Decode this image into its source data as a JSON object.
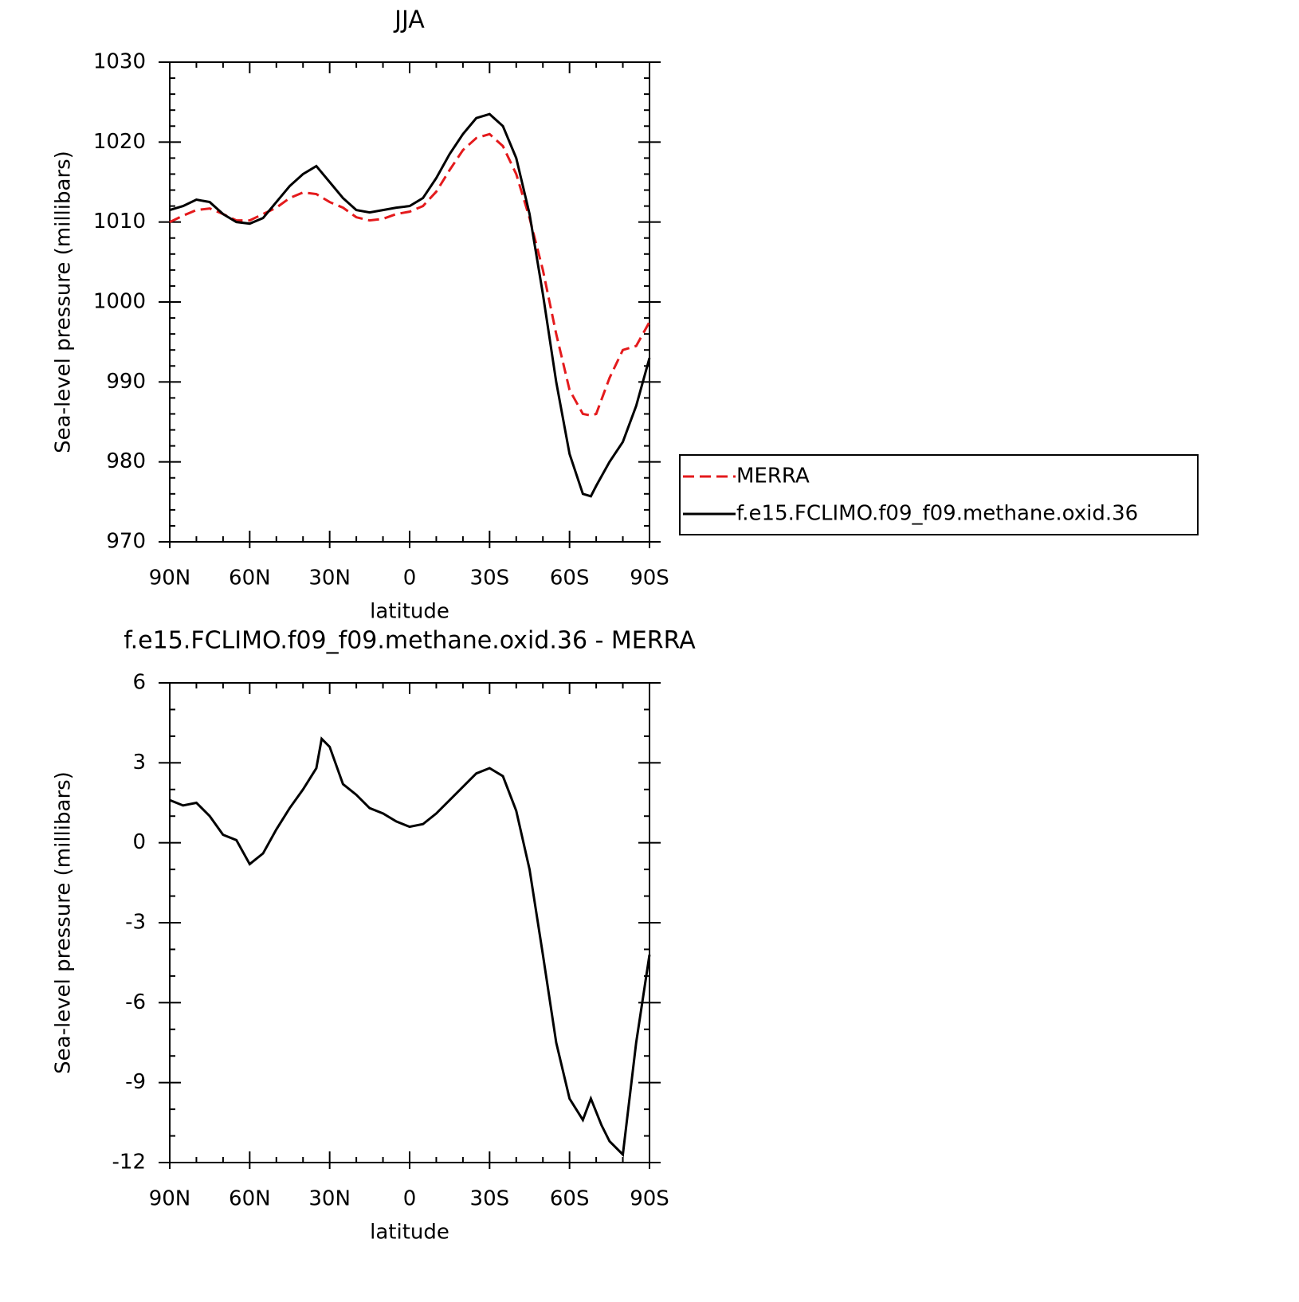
{
  "chart_data": [
    {
      "type": "line",
      "title": "JJA",
      "xlabel": "latitude",
      "ylabel": "Sea-level pressure (millibars)",
      "x": [
        90,
        85,
        80,
        75,
        70,
        65,
        60,
        55,
        50,
        45,
        40,
        35,
        30,
        25,
        20,
        15,
        10,
        5,
        0,
        -5,
        -10,
        -15,
        -20,
        -25,
        -30,
        -35,
        -40,
        -45,
        -50,
        -55,
        -60,
        -65,
        -68,
        -70,
        -75,
        -80,
        -85,
        -90
      ],
      "series": [
        {
          "name": "MERRA",
          "color": "#e41a1c",
          "dash": true,
          "values": [
            1010,
            1010.8,
            1011.5,
            1011.7,
            1011,
            1010.2,
            1010.2,
            1011,
            1011.8,
            1013,
            1013.7,
            1013.5,
            1012.5,
            1011.8,
            1010.6,
            1010.2,
            1010.4,
            1011,
            1011.3,
            1012,
            1013.8,
            1016.5,
            1019,
            1020.5,
            1021,
            1019.5,
            1016,
            1010.5,
            1004,
            996,
            989,
            986,
            985.8,
            986,
            990.5,
            994,
            994.5,
            997.5
          ]
        },
        {
          "name": "f.e15.FCLIMO.f09_f09.methane.oxid.36",
          "color": "#000000",
          "dash": false,
          "values": [
            1011.5,
            1012,
            1012.8,
            1012.5,
            1011,
            1010,
            1009.8,
            1010.5,
            1012.5,
            1014.5,
            1016,
            1017,
            1015,
            1013,
            1011.5,
            1011.2,
            1011.5,
            1011.8,
            1012,
            1013,
            1015.5,
            1018.5,
            1021,
            1023,
            1023.5,
            1022,
            1018,
            1011,
            1001,
            990,
            981,
            976,
            975.7,
            977,
            980,
            982.5,
            987,
            993
          ]
        }
      ],
      "xlim": [
        90,
        -90
      ],
      "xticks": [
        {
          "value": 90,
          "label": "90N"
        },
        {
          "value": 60,
          "label": "60N"
        },
        {
          "value": 30,
          "label": "30N"
        },
        0,
        {
          "value": -30,
          "label": "30S"
        },
        {
          "value": -60,
          "label": "60S"
        },
        {
          "value": -90,
          "label": "90S"
        }
      ],
      "ylim": [
        970,
        1030
      ],
      "yticks": [
        970,
        980,
        990,
        1000,
        1010,
        1020,
        1030
      ],
      "legend": "right"
    },
    {
      "type": "line",
      "title": "f.e15.FCLIMO.f09_f09.methane.oxid.36 - MERRA",
      "xlabel": "latitude",
      "ylabel": "Sea-level pressure (millibars)",
      "x": [
        90,
        85,
        80,
        75,
        70,
        65,
        60,
        55,
        50,
        45,
        40,
        35,
        33,
        30,
        25,
        20,
        15,
        10,
        5,
        0,
        -5,
        -10,
        -15,
        -20,
        -25,
        -30,
        -35,
        -40,
        -45,
        -50,
        -55,
        -60,
        -65,
        -68,
        -72,
        -75,
        -80,
        -85,
        -90
      ],
      "values": [
        1.6,
        1.4,
        1.5,
        1.0,
        0.3,
        0.1,
        -0.8,
        -0.4,
        0.5,
        1.3,
        2.0,
        2.8,
        3.9,
        3.6,
        2.2,
        1.8,
        1.3,
        1.1,
        0.8,
        0.6,
        0.7,
        1.1,
        1.6,
        2.1,
        2.6,
        2.8,
        2.5,
        1.2,
        -1.0,
        -4.2,
        -7.5,
        -9.6,
        -10.4,
        -9.6,
        -10.6,
        -11.2,
        -11.7,
        -7.5,
        -4.2
      ],
      "color": "#000000",
      "xlim": [
        90,
        -90
      ],
      "xticks": [
        {
          "value": 90,
          "label": "90N"
        },
        {
          "value": 60,
          "label": "60N"
        },
        {
          "value": 30,
          "label": "30N"
        },
        0,
        {
          "value": -30,
          "label": "30S"
        },
        {
          "value": -60,
          "label": "60S"
        },
        {
          "value": -90,
          "label": "90S"
        }
      ],
      "ylim": [
        -12,
        6
      ],
      "yticks": [
        -12,
        -9,
        -6,
        -3,
        0,
        3,
        6
      ]
    }
  ]
}
